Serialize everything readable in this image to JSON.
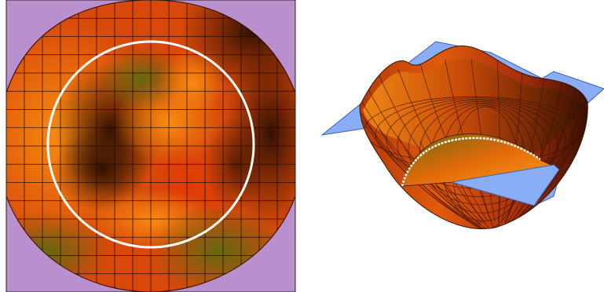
{
  "figure": {
    "left_panel": {
      "kind": "density-plot-on-disk",
      "background_color": "#b98fce",
      "grid_color": "#1a0800",
      "contour_color": "#ffffff",
      "grid_cells": 16
    },
    "right_panel": {
      "kind": "3d-surface-bowl",
      "plane_color": "#8aaef5",
      "mesh_color": "#3a1000",
      "contour_color": "#ffffff"
    },
    "palette": {
      "dark": "#3a1400",
      "red": "#d63a06",
      "orange": "#f27a06",
      "light_orange": "#fb8f0a",
      "olive": "#6e6a10"
    }
  }
}
